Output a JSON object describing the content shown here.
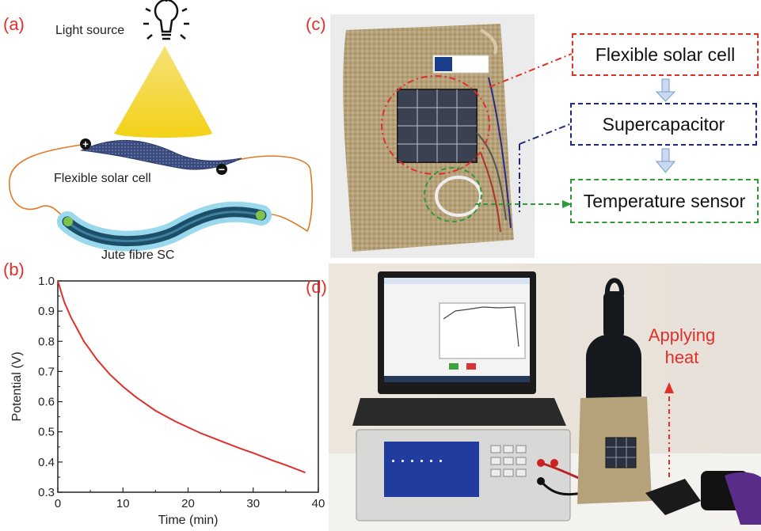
{
  "panels": {
    "a": {
      "label": "(a)",
      "light_source": "Light source",
      "solar_cell": "Flexible solar cell",
      "supercap": "Jute fibre SC",
      "plus": "+",
      "minus": "−"
    },
    "b": {
      "label": "(b)"
    },
    "c": {
      "label": "(c)",
      "flow": [
        "Flexible solar cell",
        "Supercapacitor",
        "Temperature sensor"
      ],
      "colors": {
        "solar": "#e0302a",
        "supercap": "#1f2a7a",
        "sensor": "#2e9a3a",
        "arrow": "#8fb3df"
      }
    },
    "d": {
      "label": "(d)",
      "annotation": "Applying heat",
      "annotation_color": "#e0302a"
    }
  },
  "chart_data": {
    "type": "line",
    "xlabel": "Time (min)",
    "ylabel": "Potential (V)",
    "xlim": [
      0,
      40
    ],
    "ylim": [
      0.3,
      1.0
    ],
    "xticks": [
      "0",
      "10",
      "20",
      "30",
      "40"
    ],
    "yticks": [
      "0.3",
      "0.4",
      "0.5",
      "0.6",
      "0.7",
      "0.8",
      "0.9",
      "1.0"
    ],
    "grid": false,
    "series": [
      {
        "color": "#e0302a",
        "x": [
          0,
          1,
          2,
          3,
          4,
          5,
          6,
          8,
          10,
          12,
          15,
          18,
          20,
          22,
          25,
          28,
          30,
          33,
          35,
          38
        ],
        "y": [
          1.0,
          0.93,
          0.88,
          0.84,
          0.8,
          0.77,
          0.74,
          0.69,
          0.65,
          0.615,
          0.57,
          0.535,
          0.515,
          0.495,
          0.47,
          0.445,
          0.43,
          0.405,
          0.39,
          0.365
        ]
      }
    ]
  }
}
